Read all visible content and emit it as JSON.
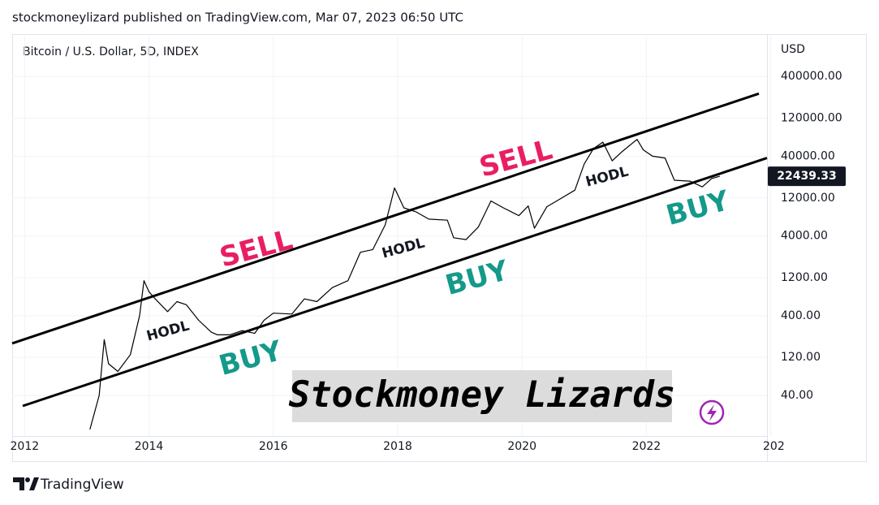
{
  "header": {
    "text": "stockmoneylizard published on TradingView.com, Mar 07, 2023 06:50 UTC"
  },
  "footer": {
    "brand": "TradingView"
  },
  "chart_data": {
    "type": "line",
    "title": "Bitcoin / U.S. Dollar, 5D, INDEX",
    "y_axis_label": "USD",
    "log_scale": true,
    "grid": true,
    "color": "#000000",
    "x": [
      2013.05,
      2013.2,
      2013.28,
      2013.35,
      2013.5,
      2013.7,
      2013.85,
      2013.92,
      2014.0,
      2014.1,
      2014.3,
      2014.45,
      2014.6,
      2014.8,
      2015.0,
      2015.1,
      2015.3,
      2015.5,
      2015.7,
      2015.85,
      2016.0,
      2016.3,
      2016.5,
      2016.7,
      2016.95,
      2017.2,
      2017.4,
      2017.6,
      2017.8,
      2017.95,
      2018.1,
      2018.3,
      2018.5,
      2018.8,
      2018.9,
      2019.1,
      2019.3,
      2019.5,
      2019.7,
      2019.95,
      2020.1,
      2020.2,
      2020.4,
      2020.6,
      2020.85,
      2021.0,
      2021.15,
      2021.3,
      2021.45,
      2021.6,
      2021.85,
      2021.95,
      2022.1,
      2022.3,
      2022.45,
      2022.7,
      2022.9,
      2023.05,
      2023.18
    ],
    "values": [
      15,
      40,
      200,
      100,
      80,
      130,
      400,
      1100,
      800,
      650,
      450,
      600,
      550,
      350,
      250,
      230,
      230,
      260,
      240,
      350,
      430,
      420,
      650,
      600,
      900,
      1100,
      2500,
      2700,
      5500,
      16000,
      9000,
      8000,
      6500,
      6300,
      3800,
      3600,
      5200,
      11000,
      9000,
      7200,
      9500,
      5000,
      9300,
      11500,
      15000,
      32000,
      50000,
      60000,
      35000,
      45000,
      65000,
      48000,
      40000,
      38000,
      20000,
      19500,
      16500,
      21000,
      22439.33
    ],
    "xlim": [
      2011.8,
      2023.94
    ],
    "xticks": [
      2012,
      2014,
      2016,
      2018,
      2020,
      2022,
      {
        "value": 2024,
        "label": "202"
      }
    ],
    "ylim": [
      12.4,
      1360000
    ],
    "yticks": [
      {
        "value": 400000,
        "label": "400000.00"
      },
      {
        "value": 120000,
        "label": "120000.00"
      },
      {
        "value": 40000,
        "label": "40000.00"
      },
      {
        "value": 12000,
        "label": "12000.00"
      },
      {
        "value": 4000,
        "label": "4000.00"
      },
      {
        "value": 1200,
        "label": "1200.00"
      },
      {
        "value": 400,
        "label": "400.00"
      },
      {
        "value": 120,
        "label": "120.00"
      },
      {
        "value": 40,
        "label": "40.00"
      }
    ],
    "trendlines": [
      {
        "color": "#000000",
        "x": [
          2011.8,
          2023.81
        ],
        "values": [
          180,
          244000
        ]
      },
      {
        "color": "#000000",
        "x": [
          2011.97,
          2023.94
        ],
        "values": [
          29.5,
          38000
        ]
      }
    ],
    "annotations": [
      {
        "text": "SELL",
        "color": "#e91e63"
      },
      {
        "text": "SELL",
        "color": "#e91e63"
      },
      {
        "text": "BUY",
        "color": "#14998a"
      },
      {
        "text": "BUY",
        "color": "#14998a"
      },
      {
        "text": "BUY",
        "color": "#14998a"
      },
      {
        "text": "HODL",
        "color": "#131722"
      },
      {
        "text": "HODL",
        "color": "#131722"
      },
      {
        "text": "HODL",
        "color": "#131722"
      }
    ],
    "watermark": "Stockmoney Lizards"
  }
}
